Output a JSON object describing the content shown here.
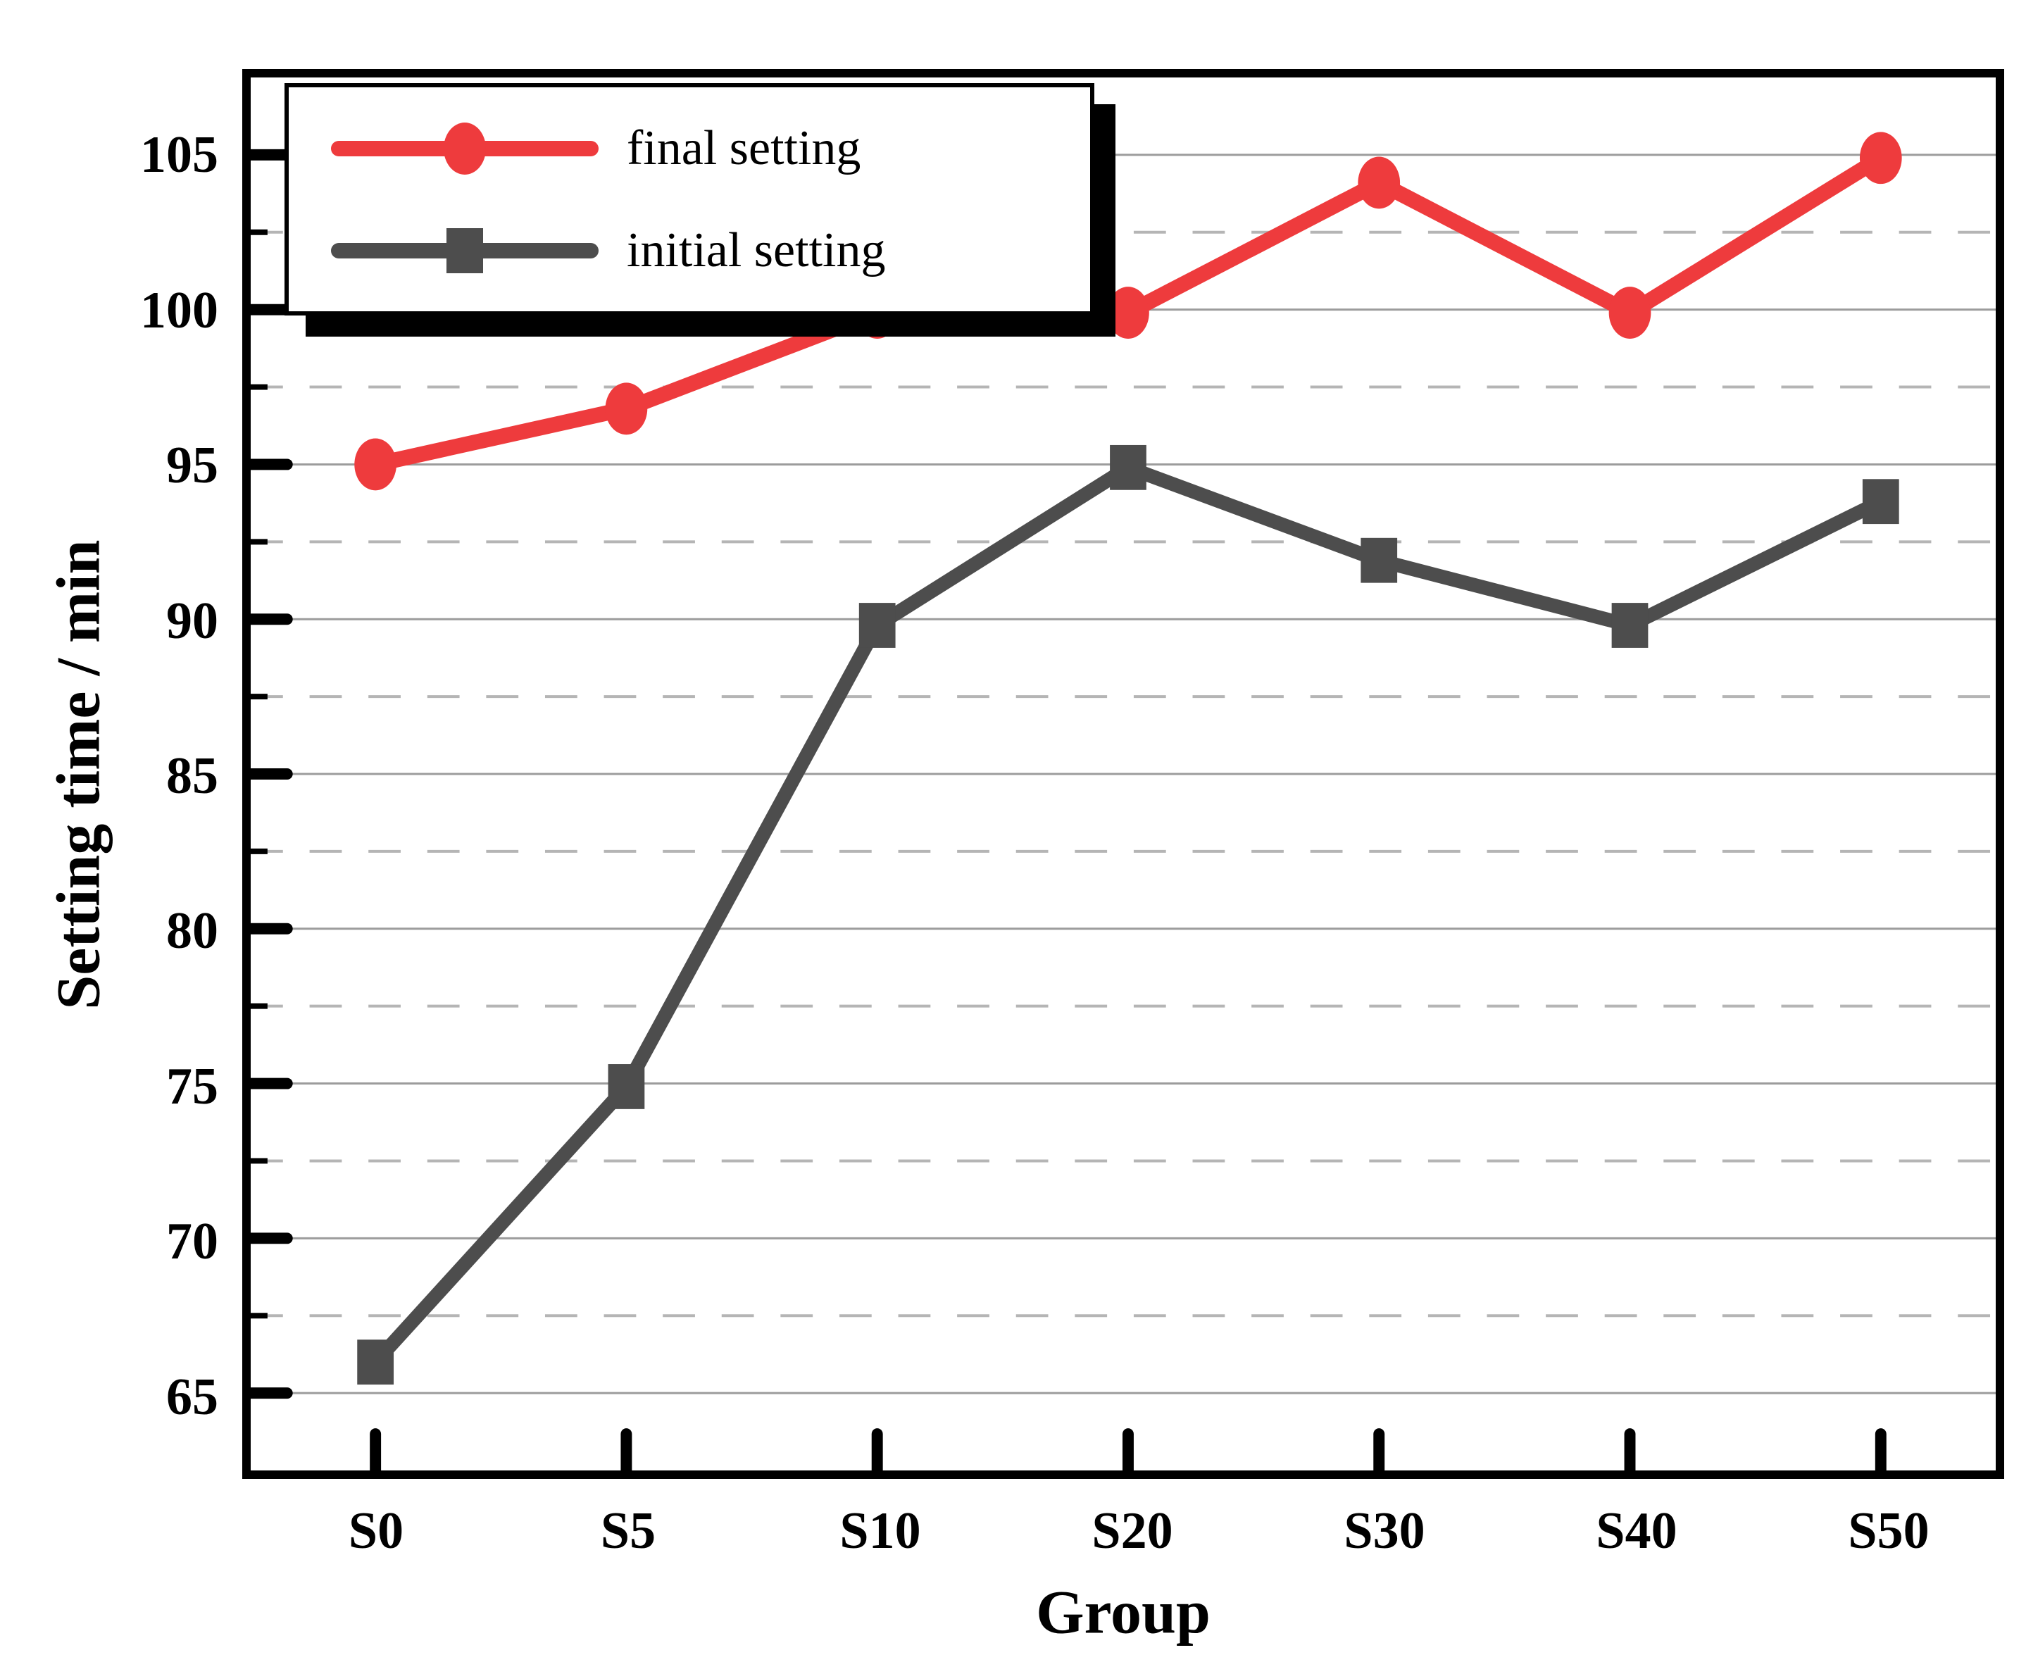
{
  "chart_data": {
    "type": "line",
    "categories": [
      "S0",
      "S5",
      "S10",
      "S20",
      "S30",
      "S40",
      "S50"
    ],
    "series": [
      {
        "name": "final setting",
        "marker": "circle",
        "color": "#ee3b3d",
        "values": [
          95,
          96.8,
          99.9,
          99.9,
          104.1,
          99.9,
          104.9
        ]
      },
      {
        "name": "initial setting",
        "marker": "square",
        "color": "#4d4d4d",
        "values": [
          66,
          74.9,
          89.8,
          94.9,
          91.9,
          89.8,
          93.8
        ]
      }
    ],
    "title": "",
    "xlabel": "Group",
    "ylabel": "Setting time / min",
    "ylim": [
      62.5,
      107.5
    ],
    "yticks_major": [
      65,
      70,
      75,
      80,
      85,
      90,
      95,
      100,
      105
    ],
    "yticks_minor": [
      67.5,
      72.5,
      77.5,
      82.5,
      87.5,
      92.5,
      97.5,
      102.5
    ],
    "grid": {
      "major_style": "solid",
      "minor_style": "dashed",
      "vertical": false
    },
    "legend_position": "top-left"
  },
  "colors": {
    "axis": "#000000",
    "major_grid": "#9c9c9c",
    "minor_grid": "#b5b5b5",
    "background": "#ffffff"
  }
}
